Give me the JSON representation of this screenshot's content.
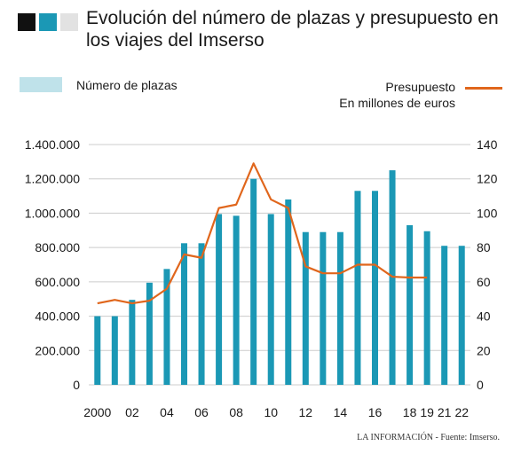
{
  "header": {
    "title": "Evolución del número de plazas y presupuesto en los viajes del Imserso",
    "swatch_colors": [
      "#111111",
      "#1b98b5",
      "#e2e2e2"
    ]
  },
  "legend": {
    "bars_label": "Número de plazas",
    "line_label_1": "Presupuesto",
    "line_label_2": "En millones de euros"
  },
  "source": "LA INFORMACIÓN - Fuente: Imserso.",
  "chart_data": {
    "type": "bar",
    "categories": [
      "2000",
      "2001",
      "2002",
      "2003",
      "2004",
      "2005",
      "2006",
      "2007",
      "2008",
      "2009",
      "2010",
      "2011",
      "2012",
      "2013",
      "2014",
      "2015",
      "2016",
      "2017",
      "2018",
      "2019",
      "2021",
      "2022"
    ],
    "x_tick_labels": [
      "2000",
      "",
      "02",
      "",
      "04",
      "",
      "06",
      "",
      "08",
      "",
      "10",
      "",
      "12",
      "",
      "14",
      "",
      "16",
      "",
      "18",
      "19",
      "21",
      "22"
    ],
    "series": [
      {
        "axis": "left",
        "kind": "bar",
        "color": "#1b98b5",
        "values": [
          400000,
          400000,
          495000,
          595000,
          675000,
          825000,
          825000,
          995000,
          985000,
          1200000,
          995000,
          1080000,
          890000,
          890000,
          890000,
          1130000,
          1130000,
          1250000,
          930000,
          895000,
          810000,
          810000
        ]
      },
      {
        "axis": "right",
        "kind": "line",
        "color": "#e0661c",
        "values": [
          47.5,
          49.5,
          47.5,
          49,
          56,
          76,
          74,
          103,
          105,
          129,
          108,
          103,
          69,
          65,
          65,
          70,
          70,
          63,
          62.5,
          62.5,
          null,
          null
        ]
      }
    ],
    "y_left": {
      "ylim": [
        0,
        1400000
      ],
      "ticks": [
        "0",
        "200.000",
        "400.000",
        "600.000",
        "800.000",
        "1.000.000",
        "1.200.000",
        "1.400.000"
      ]
    },
    "y_right": {
      "ylim": [
        0,
        140
      ],
      "ticks": [
        "0",
        "20",
        "40",
        "60",
        "80",
        "100",
        "120",
        "140"
      ]
    },
    "grid": "horizontal"
  }
}
